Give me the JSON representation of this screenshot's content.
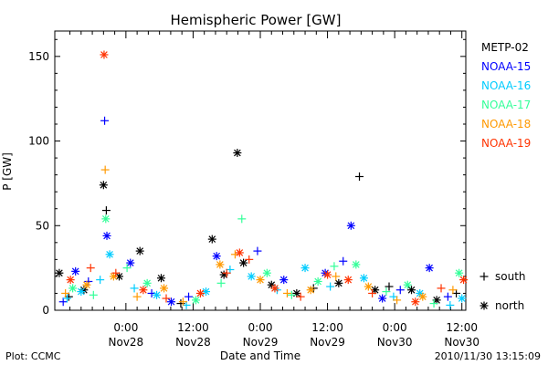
{
  "chart_data": {
    "type": "scatter",
    "title": "Hemispheric Power [GW]",
    "xlabel": "Date and Time",
    "ylabel": "P [GW]",
    "ylim": [
      0,
      165
    ],
    "xlim_hours": [
      -12.7,
      60.7
    ],
    "x_reference": "2010-11-28 00:00",
    "yticks": [
      0,
      50,
      100,
      150
    ],
    "xticks": [
      {
        "hours": 0,
        "time": "0:00",
        "date": "Nov28"
      },
      {
        "hours": 12,
        "time": "12:00",
        "date": "Nov28"
      },
      {
        "hours": 24,
        "time": "0:00",
        "date": "Nov29"
      },
      {
        "hours": 36,
        "time": "12:00",
        "date": "Nov29"
      },
      {
        "hours": 48,
        "time": "0:00",
        "date": "Nov30"
      },
      {
        "hours": 60,
        "time": "12:00",
        "date": "Nov30"
      }
    ],
    "grid": false,
    "legend_position": "right",
    "markers": {
      "south": "+",
      "north": "*"
    },
    "marker_legend": [
      {
        "symbol": "+",
        "label": "south"
      },
      {
        "symbol": "*",
        "label": "north"
      }
    ],
    "series": [
      {
        "name": "METP-02",
        "color": "#000000",
        "points": [
          {
            "x": -11.9,
            "y": 22,
            "hemi": "north"
          },
          {
            "x": -10.2,
            "y": 8,
            "hemi": "south"
          },
          {
            "x": -7.5,
            "y": 12,
            "hemi": "north"
          },
          {
            "x": -4.0,
            "y": 74,
            "hemi": "north"
          },
          {
            "x": -3.5,
            "y": 59,
            "hemi": "south"
          },
          {
            "x": -1.2,
            "y": 20,
            "hemi": "north"
          },
          {
            "x": 2.5,
            "y": 35,
            "hemi": "north"
          },
          {
            "x": 6.3,
            "y": 19,
            "hemi": "north"
          },
          {
            "x": 9.8,
            "y": 4,
            "hemi": "south"
          },
          {
            "x": 15.4,
            "y": 42,
            "hemi": "north"
          },
          {
            "x": 17.5,
            "y": 21,
            "hemi": "north"
          },
          {
            "x": 19.9,
            "y": 93,
            "hemi": "north"
          },
          {
            "x": 21.0,
            "y": 28,
            "hemi": "north"
          },
          {
            "x": 26.0,
            "y": 15,
            "hemi": "north"
          },
          {
            "x": 30.5,
            "y": 10,
            "hemi": "north"
          },
          {
            "x": 33.5,
            "y": 13,
            "hemi": "south"
          },
          {
            "x": 38.0,
            "y": 16,
            "hemi": "north"
          },
          {
            "x": 41.7,
            "y": 79,
            "hemi": "south"
          },
          {
            "x": 44.5,
            "y": 12,
            "hemi": "north"
          },
          {
            "x": 47.0,
            "y": 14,
            "hemi": "south"
          },
          {
            "x": 51.0,
            "y": 12,
            "hemi": "north"
          },
          {
            "x": 55.5,
            "y": 6,
            "hemi": "north"
          },
          {
            "x": 59.0,
            "y": 10,
            "hemi": "south"
          }
        ]
      },
      {
        "name": "NOAA-15",
        "color": "#0000ff",
        "points": [
          {
            "x": -11.2,
            "y": 5,
            "hemi": "south"
          },
          {
            "x": -9.0,
            "y": 23,
            "hemi": "north"
          },
          {
            "x": -6.7,
            "y": 17,
            "hemi": "south"
          },
          {
            "x": -3.8,
            "y": 112,
            "hemi": "south"
          },
          {
            "x": -3.4,
            "y": 44,
            "hemi": "north"
          },
          {
            "x": 0.8,
            "y": 28,
            "hemi": "north"
          },
          {
            "x": 4.6,
            "y": 10,
            "hemi": "south"
          },
          {
            "x": 8.1,
            "y": 5,
            "hemi": "north"
          },
          {
            "x": 11.2,
            "y": 8,
            "hemi": "south"
          },
          {
            "x": 16.2,
            "y": 32,
            "hemi": "north"
          },
          {
            "x": 23.5,
            "y": 35,
            "hemi": "south"
          },
          {
            "x": 28.2,
            "y": 18,
            "hemi": "north"
          },
          {
            "x": 35.6,
            "y": 22,
            "hemi": "north"
          },
          {
            "x": 38.8,
            "y": 29,
            "hemi": "south"
          },
          {
            "x": 40.2,
            "y": 50,
            "hemi": "north"
          },
          {
            "x": 45.8,
            "y": 7,
            "hemi": "north"
          },
          {
            "x": 49.0,
            "y": 12,
            "hemi": "south"
          },
          {
            "x": 54.2,
            "y": 25,
            "hemi": "north"
          },
          {
            "x": 57.5,
            "y": 8,
            "hemi": "south"
          }
        ]
      },
      {
        "name": "NOAA-16",
        "color": "#00ccff",
        "points": [
          {
            "x": -10.5,
            "y": 7,
            "hemi": "south"
          },
          {
            "x": -8.0,
            "y": 11,
            "hemi": "north"
          },
          {
            "x": -4.6,
            "y": 18,
            "hemi": "south"
          },
          {
            "x": -2.9,
            "y": 33,
            "hemi": "north"
          },
          {
            "x": 1.5,
            "y": 13,
            "hemi": "south"
          },
          {
            "x": 5.5,
            "y": 9,
            "hemi": "north"
          },
          {
            "x": 10.8,
            "y": 3,
            "hemi": "south"
          },
          {
            "x": 14.3,
            "y": 11,
            "hemi": "north"
          },
          {
            "x": 18.6,
            "y": 24,
            "hemi": "south"
          },
          {
            "x": 22.4,
            "y": 20,
            "hemi": "north"
          },
          {
            "x": 27.0,
            "y": 12,
            "hemi": "south"
          },
          {
            "x": 32.0,
            "y": 25,
            "hemi": "north"
          },
          {
            "x": 36.5,
            "y": 14,
            "hemi": "south"
          },
          {
            "x": 42.5,
            "y": 19,
            "hemi": "north"
          },
          {
            "x": 47.8,
            "y": 8,
            "hemi": "south"
          },
          {
            "x": 52.5,
            "y": 10,
            "hemi": "north"
          },
          {
            "x": 57.9,
            "y": 3,
            "hemi": "south"
          },
          {
            "x": 60.0,
            "y": 7,
            "hemi": "north"
          }
        ]
      },
      {
        "name": "NOAA-17",
        "color": "#33ff99",
        "points": [
          {
            "x": -9.5,
            "y": 13,
            "hemi": "north"
          },
          {
            "x": -5.8,
            "y": 9,
            "hemi": "south"
          },
          {
            "x": -3.6,
            "y": 54,
            "hemi": "north"
          },
          {
            "x": 0.2,
            "y": 25,
            "hemi": "south"
          },
          {
            "x": 3.8,
            "y": 16,
            "hemi": "north"
          },
          {
            "x": 12.5,
            "y": 6,
            "hemi": "north"
          },
          {
            "x": 17.0,
            "y": 16,
            "hemi": "south"
          },
          {
            "x": 20.7,
            "y": 54,
            "hemi": "south"
          },
          {
            "x": 25.2,
            "y": 22,
            "hemi": "north"
          },
          {
            "x": 29.6,
            "y": 9,
            "hemi": "south"
          },
          {
            "x": 34.3,
            "y": 17,
            "hemi": "north"
          },
          {
            "x": 37.2,
            "y": 26,
            "hemi": "south"
          },
          {
            "x": 41.1,
            "y": 27,
            "hemi": "north"
          },
          {
            "x": 46.5,
            "y": 11,
            "hemi": "south"
          },
          {
            "x": 50.3,
            "y": 15,
            "hemi": "north"
          },
          {
            "x": 55.0,
            "y": 4,
            "hemi": "south"
          },
          {
            "x": 59.5,
            "y": 22,
            "hemi": "north"
          }
        ]
      },
      {
        "name": "NOAA-18",
        "color": "#ff9900",
        "points": [
          {
            "x": -10.8,
            "y": 10,
            "hemi": "south"
          },
          {
            "x": -7.0,
            "y": 15,
            "hemi": "north"
          },
          {
            "x": -3.7,
            "y": 83,
            "hemi": "south"
          },
          {
            "x": -2.2,
            "y": 20,
            "hemi": "north"
          },
          {
            "x": 2.0,
            "y": 8,
            "hemi": "south"
          },
          {
            "x": 6.8,
            "y": 13,
            "hemi": "north"
          },
          {
            "x": 10.2,
            "y": 5,
            "hemi": "south"
          },
          {
            "x": 16.8,
            "y": 27,
            "hemi": "north"
          },
          {
            "x": 19.5,
            "y": 33,
            "hemi": "south"
          },
          {
            "x": 24.0,
            "y": 18,
            "hemi": "north"
          },
          {
            "x": 28.8,
            "y": 10,
            "hemi": "south"
          },
          {
            "x": 33.0,
            "y": 12,
            "hemi": "north"
          },
          {
            "x": 37.5,
            "y": 20,
            "hemi": "south"
          },
          {
            "x": 43.3,
            "y": 14,
            "hemi": "north"
          },
          {
            "x": 48.4,
            "y": 6,
            "hemi": "south"
          },
          {
            "x": 53.0,
            "y": 8,
            "hemi": "north"
          },
          {
            "x": 58.4,
            "y": 12,
            "hemi": "south"
          }
        ]
      },
      {
        "name": "NOAA-19",
        "color": "#ff3300",
        "points": [
          {
            "x": -9.9,
            "y": 18,
            "hemi": "north"
          },
          {
            "x": -6.3,
            "y": 25,
            "hemi": "south"
          },
          {
            "x": -3.9,
            "y": 151,
            "hemi": "north"
          },
          {
            "x": -1.8,
            "y": 22,
            "hemi": "south"
          },
          {
            "x": 3.1,
            "y": 12,
            "hemi": "north"
          },
          {
            "x": 7.2,
            "y": 7,
            "hemi": "south"
          },
          {
            "x": 13.3,
            "y": 10,
            "hemi": "north"
          },
          {
            "x": 18.0,
            "y": 22,
            "hemi": "south"
          },
          {
            "x": 20.3,
            "y": 34,
            "hemi": "north"
          },
          {
            "x": 22.0,
            "y": 30,
            "hemi": "south"
          },
          {
            "x": 26.6,
            "y": 13,
            "hemi": "north"
          },
          {
            "x": 31.2,
            "y": 8,
            "hemi": "south"
          },
          {
            "x": 36.0,
            "y": 21,
            "hemi": "north"
          },
          {
            "x": 39.7,
            "y": 18,
            "hemi": "north"
          },
          {
            "x": 44.0,
            "y": 10,
            "hemi": "south"
          },
          {
            "x": 51.7,
            "y": 5,
            "hemi": "north"
          },
          {
            "x": 56.3,
            "y": 13,
            "hemi": "south"
          },
          {
            "x": 60.3,
            "y": 18,
            "hemi": "north"
          }
        ]
      }
    ]
  },
  "footer": {
    "plot_credit": "Plot: CCMC",
    "timestamp": "2010/11/30 13:15:09"
  }
}
